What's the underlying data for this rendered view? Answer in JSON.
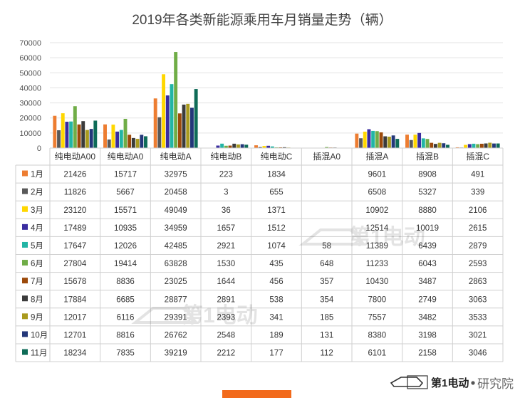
{
  "chart_data": {
    "type": "bar",
    "title": "2019年各类新能源乘用车月销量走势（辆）",
    "categories": [
      "纯电动A00",
      "纯电动A0",
      "纯电动A",
      "纯电动B",
      "纯电动C",
      "插混A0",
      "插混A",
      "插混B",
      "插混C"
    ],
    "ylim": [
      0,
      70000
    ],
    "yticks": [
      0,
      10000,
      20000,
      30000,
      40000,
      50000,
      60000,
      70000
    ],
    "grid": true,
    "legend": "table-below",
    "series": [
      {
        "name": "1月",
        "color": "#ED7D31",
        "values": [
          21426,
          15717,
          32975,
          223,
          1834,
          null,
          9601,
          8908,
          491
        ]
      },
      {
        "name": "2月",
        "color": "#595959",
        "values": [
          11826,
          5667,
          20458,
          3,
          655,
          null,
          6508,
          5327,
          339
        ]
      },
      {
        "name": "3月",
        "color": "#FFD700",
        "values": [
          23120,
          15571,
          49049,
          36,
          1371,
          null,
          10902,
          8880,
          2106
        ]
      },
      {
        "name": "4月",
        "color": "#3A2DA0",
        "values": [
          17489,
          10935,
          34959,
          1657,
          1512,
          null,
          12514,
          10019,
          2615
        ]
      },
      {
        "name": "5月",
        "color": "#22B5A5",
        "values": [
          17647,
          12026,
          42485,
          2921,
          1074,
          58,
          11389,
          6439,
          2879
        ]
      },
      {
        "name": "6月",
        "color": "#70AD47",
        "values": [
          27804,
          19414,
          63828,
          1530,
          435,
          648,
          11233,
          6043,
          2593
        ]
      },
      {
        "name": "7月",
        "color": "#9C4A0B",
        "values": [
          15678,
          8836,
          23025,
          1644,
          456,
          357,
          10430,
          3487,
          2863
        ]
      },
      {
        "name": "8月",
        "color": "#3B3B3B",
        "values": [
          17884,
          6685,
          28877,
          2891,
          538,
          354,
          7800,
          2749,
          3063
        ]
      },
      {
        "name": "9月",
        "color": "#A99A1E",
        "values": [
          12017,
          6116,
          29391,
          2393,
          341,
          185,
          7557,
          3482,
          3533
        ]
      },
      {
        "name": "10月",
        "color": "#233779",
        "values": [
          12701,
          8816,
          26762,
          2548,
          189,
          131,
          8380,
          3198,
          3021
        ]
      },
      {
        "name": "11月",
        "color": "#0E6B57",
        "values": [
          18234,
          7835,
          39219,
          2212,
          177,
          112,
          6101,
          2158,
          3046
        ]
      }
    ]
  },
  "branding": {
    "logo_text": "第1电动",
    "logo_suffix": "研究院",
    "watermark_text": "第1电动",
    "accent_color": "#F26A1B"
  }
}
